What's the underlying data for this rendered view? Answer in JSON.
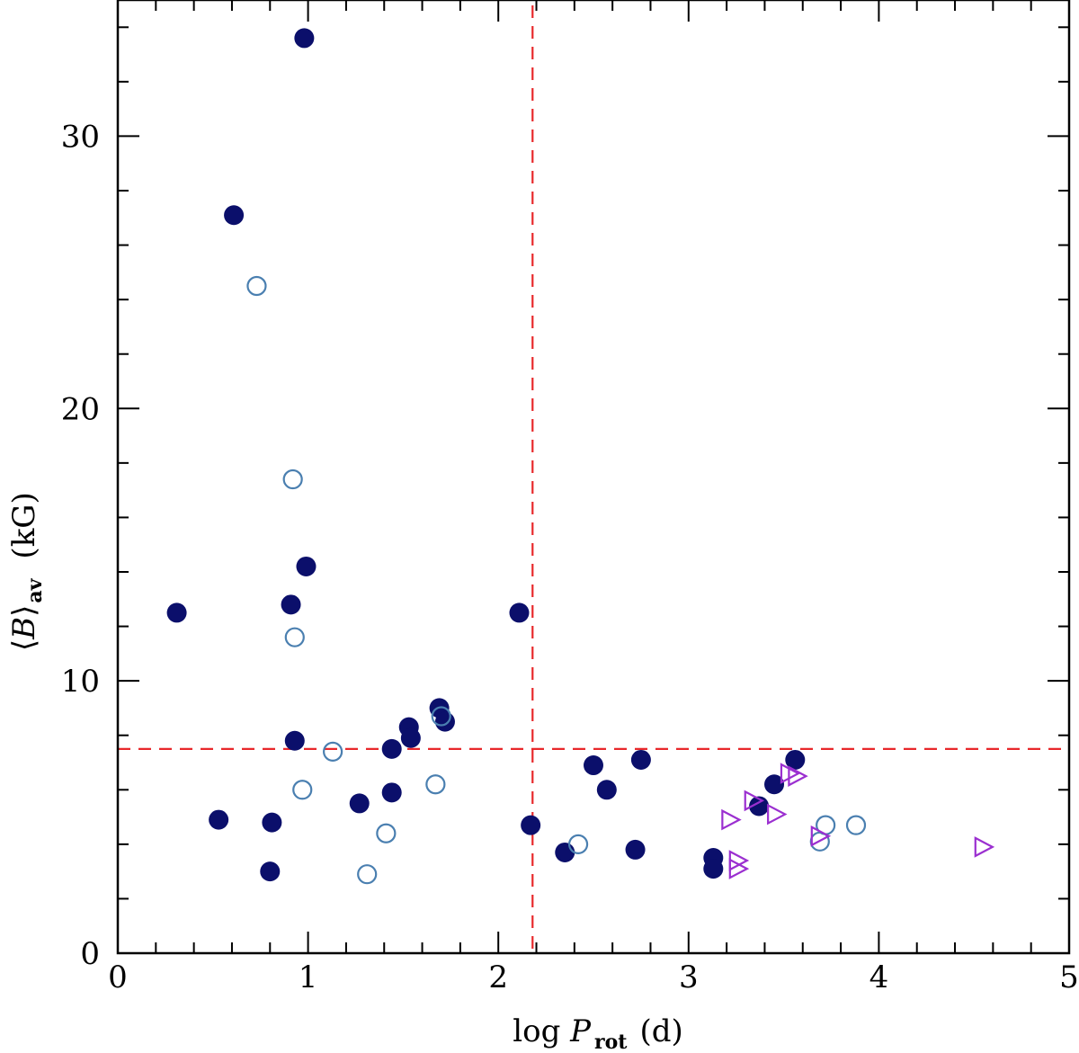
{
  "chart_data": {
    "type": "scatter",
    "title": "",
    "xlabel": {
      "prefix": "log ",
      "var": "P",
      "sub": "rot",
      "unit": "(d)"
    },
    "ylabel": {
      "lbr": "⟨",
      "var": "B",
      "rbr": "⟩",
      "sub": "av",
      "unit": "(kG)"
    },
    "xlim": [
      0,
      5
    ],
    "ylim": [
      0,
      35
    ],
    "xticks": [
      "0",
      "1",
      "2",
      "3",
      "4",
      "5"
    ],
    "yticks": [
      "0",
      "10",
      "20",
      "30"
    ],
    "grid": false,
    "reference_lines": {
      "vertical_x": 2.18,
      "horizontal_y": 7.5,
      "color": "#e8282b"
    },
    "colors": {
      "filled": "#0b0f6b",
      "open": "#4a7fb0",
      "triangle": "#9b2fd0"
    },
    "series": [
      {
        "name": "filled circles",
        "marker": "filled-circle",
        "points": [
          [
            0.98,
            33.6
          ],
          [
            0.61,
            27.1
          ],
          [
            0.99,
            14.2
          ],
          [
            0.91,
            12.8
          ],
          [
            0.31,
            12.5
          ],
          [
            2.11,
            12.5
          ],
          [
            1.69,
            9.0
          ],
          [
            1.72,
            8.5
          ],
          [
            1.53,
            8.3
          ],
          [
            1.54,
            7.9
          ],
          [
            0.93,
            7.8
          ],
          [
            1.44,
            7.5
          ],
          [
            2.75,
            7.1
          ],
          [
            2.5,
            6.9
          ],
          [
            2.57,
            6.0
          ],
          [
            1.44,
            5.9
          ],
          [
            1.27,
            5.5
          ],
          [
            0.53,
            4.9
          ],
          [
            0.81,
            4.8
          ],
          [
            2.17,
            4.7
          ],
          [
            2.35,
            3.7
          ],
          [
            2.72,
            3.8
          ],
          [
            3.13,
            3.5
          ],
          [
            3.13,
            3.1
          ],
          [
            0.8,
            3.0
          ],
          [
            3.37,
            5.4
          ],
          [
            3.45,
            6.2
          ],
          [
            3.56,
            7.1
          ]
        ]
      },
      {
        "name": "open circles",
        "marker": "open-circle",
        "points": [
          [
            0.73,
            24.5
          ],
          [
            0.92,
            17.4
          ],
          [
            0.93,
            11.6
          ],
          [
            1.7,
            8.7
          ],
          [
            1.13,
            7.4
          ],
          [
            0.97,
            6.0
          ],
          [
            1.67,
            6.2
          ],
          [
            1.41,
            4.4
          ],
          [
            1.31,
            2.9
          ],
          [
            2.42,
            4.0
          ],
          [
            3.72,
            4.7
          ],
          [
            3.88,
            4.7
          ],
          [
            3.69,
            4.1
          ]
        ]
      },
      {
        "name": "open triangles",
        "marker": "open-triangle-right",
        "points": [
          [
            3.22,
            4.9
          ],
          [
            3.26,
            3.4
          ],
          [
            3.26,
            3.1
          ],
          [
            3.34,
            5.6
          ],
          [
            3.46,
            5.1
          ],
          [
            3.53,
            6.6
          ],
          [
            3.57,
            6.5
          ],
          [
            3.69,
            4.3
          ],
          [
            4.55,
            3.9
          ]
        ]
      }
    ]
  }
}
